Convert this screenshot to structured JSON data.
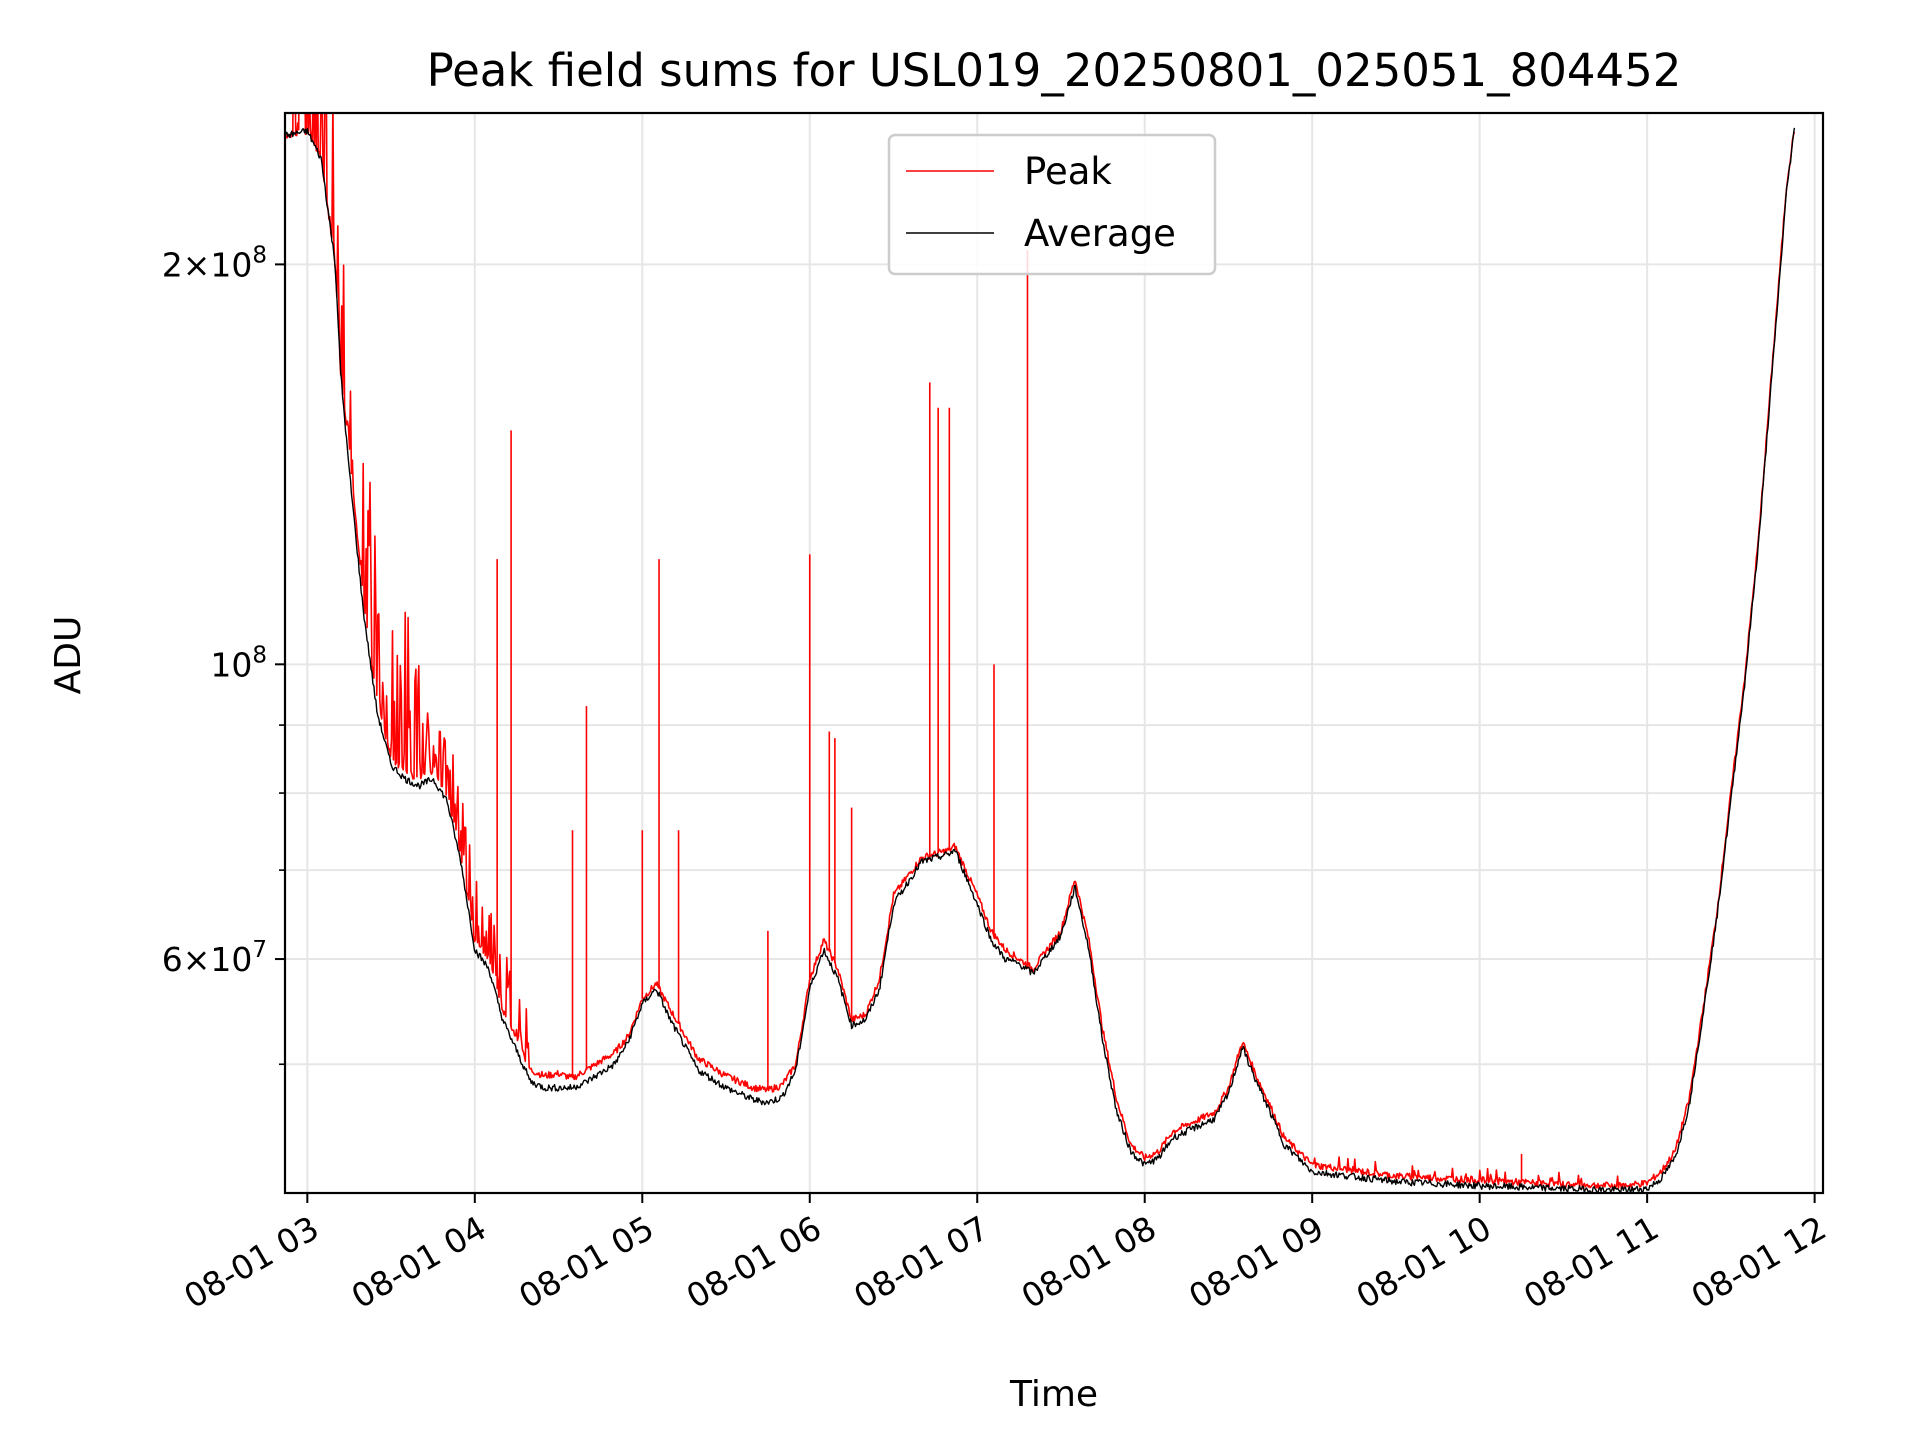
{
  "chart_data": {
    "type": "line",
    "title": "Peak field sums for USL019_20250801_025051_804452",
    "xlabel": "Time",
    "ylabel": "ADU",
    "yscale": "log",
    "ylim": [
      40000000,
      260000000
    ],
    "xlim": [
      "08-01 02:52",
      "08-01 12:03"
    ],
    "grid": true,
    "legend_position": "top-center",
    "x_ticks": [
      "08-01 03",
      "08-01 04",
      "08-01 05",
      "08-01 06",
      "08-01 07",
      "08-01 08",
      "08-01 09",
      "08-01 10",
      "08-01 11",
      "08-01 12"
    ],
    "y_tick_labels": [
      {
        "value": 60000000,
        "mant": "6",
        "exp": "7"
      },
      {
        "value": 100000000,
        "mant": "",
        "exp": "8"
      },
      {
        "value": 200000000,
        "mant": "2",
        "exp": "8"
      }
    ],
    "y_minor_ticks": [
      50000000,
      70000000,
      80000000,
      90000000
    ],
    "series": [
      {
        "name": "Peak",
        "color": "#ff0000",
        "x": [
          "02:52",
          "03:00",
          "03:05",
          "03:10",
          "03:12",
          "03:15",
          "03:20",
          "03:25",
          "03:30",
          "03:35",
          "03:40",
          "03:45",
          "03:50",
          "03:55",
          "04:00",
          "04:05",
          "04:10",
          "04:20",
          "04:25",
          "04:30",
          "04:35",
          "04:40",
          "04:50",
          "04:55",
          "05:00",
          "05:05",
          "05:10",
          "05:20",
          "05:30",
          "05:40",
          "05:45",
          "05:50",
          "05:55",
          "06:00",
          "06:05",
          "06:10",
          "06:15",
          "06:20",
          "06:25",
          "06:30",
          "06:40",
          "06:50",
          "06:52",
          "07:00",
          "07:05",
          "07:10",
          "07:15",
          "07:20",
          "07:25",
          "07:30",
          "07:35",
          "07:40",
          "07:45",
          "07:50",
          "07:55",
          "08:00",
          "08:05",
          "08:10",
          "08:15",
          "08:20",
          "08:25",
          "08:30",
          "08:35",
          "08:40",
          "08:45",
          "08:50",
          "09:00",
          "09:30",
          "10:00",
          "10:30",
          "10:50",
          "11:00",
          "11:05",
          "11:10",
          "11:15",
          "11:20",
          "11:25",
          "11:30",
          "11:35",
          "11:40",
          "11:45",
          "11:50",
          "11:53"
        ],
        "y": [
          250000000,
          252000000,
          240000000,
          200000000,
          165000000,
          145000000,
          112000000,
          94000000,
          85000000,
          83000000,
          82000000,
          83000000,
          80000000,
          72000000,
          62000000,
          60000000,
          55000000,
          49500000,
          49000000,
          49200000,
          48800000,
          49500000,
          51000000,
          52500000,
          56000000,
          57500000,
          55000000,
          50500000,
          49000000,
          48000000,
          47800000,
          48200000,
          50000000,
          58000000,
          62000000,
          59000000,
          54000000,
          54500000,
          58000000,
          67000000,
          71500000,
          72500000,
          73000000,
          67000000,
          63000000,
          61000000,
          60000000,
          59000000,
          61000000,
          63000000,
          69000000,
          62000000,
          53000000,
          47000000,
          43500000,
          42500000,
          43000000,
          44500000,
          45000000,
          45500000,
          46000000,
          48000000,
          52000000,
          49000000,
          46500000,
          44000000,
          42000000,
          41200000,
          40900000,
          40600000,
          40500000,
          40700000,
          41500000,
          43000000,
          47000000,
          55000000,
          65000000,
          80000000,
          98000000,
          125000000,
          170000000,
          230000000,
          255000000
        ]
      },
      {
        "name": "Average",
        "color": "#000000",
        "x": [
          "02:52",
          "03:00",
          "03:05",
          "03:10",
          "03:12",
          "03:15",
          "03:20",
          "03:25",
          "03:30",
          "03:35",
          "03:40",
          "03:45",
          "03:50",
          "03:55",
          "04:00",
          "04:05",
          "04:10",
          "04:20",
          "04:25",
          "04:30",
          "04:35",
          "04:40",
          "04:50",
          "04:55",
          "05:00",
          "05:05",
          "05:10",
          "05:20",
          "05:30",
          "05:40",
          "05:45",
          "05:50",
          "05:55",
          "06:00",
          "06:05",
          "06:10",
          "06:15",
          "06:20",
          "06:25",
          "06:30",
          "06:40",
          "06:50",
          "06:52",
          "07:00",
          "07:05",
          "07:10",
          "07:15",
          "07:20",
          "07:25",
          "07:30",
          "07:35",
          "07:40",
          "07:45",
          "07:50",
          "07:55",
          "08:00",
          "08:05",
          "08:10",
          "08:15",
          "08:20",
          "08:25",
          "08:30",
          "08:35",
          "08:40",
          "08:45",
          "08:50",
          "09:00",
          "09:30",
          "10:00",
          "10:30",
          "10:50",
          "11:00",
          "11:05",
          "11:10",
          "11:15",
          "11:20",
          "11:25",
          "11:30",
          "11:35",
          "11:40",
          "11:45",
          "11:50",
          "11:53"
        ],
        "y": [
          250000000,
          252000000,
          240000000,
          200000000,
          165000000,
          140000000,
          110000000,
          92000000,
          84000000,
          82000000,
          81000000,
          82000000,
          79000000,
          71000000,
          61000000,
          59000000,
          54000000,
          48500000,
          48000000,
          48000000,
          48000000,
          48500000,
          50000000,
          52000000,
          55500000,
          57000000,
          54000000,
          49500000,
          48000000,
          47000000,
          46800000,
          47200000,
          49500000,
          57000000,
          61000000,
          58000000,
          53500000,
          54000000,
          57000000,
          66000000,
          71000000,
          72000000,
          72500000,
          66000000,
          62000000,
          60000000,
          59500000,
          58500000,
          60500000,
          62500000,
          68000000,
          61000000,
          52000000,
          46000000,
          43000000,
          42000000,
          42500000,
          44000000,
          44500000,
          45000000,
          45500000,
          47500000,
          51500000,
          48500000,
          46000000,
          43500000,
          41500000,
          40800000,
          40500000,
          40300000,
          40200000,
          40300000,
          41000000,
          42500000,
          46500000,
          54500000,
          64500000,
          79000000,
          97000000,
          124000000,
          168000000,
          228000000,
          255000000
        ]
      },
      {
        "name": "",
        "color": "#ff0000",
        "spikes": [
          {
            "x": "04:08",
            "y": 120000000
          },
          {
            "x": "04:13",
            "y": 150000000
          },
          {
            "x": "04:35",
            "y": 75000000
          },
          {
            "x": "04:40",
            "y": 93000000
          },
          {
            "x": "05:00",
            "y": 75000000
          },
          {
            "x": "05:06",
            "y": 120000000
          },
          {
            "x": "05:13",
            "y": 75000000
          },
          {
            "x": "05:45",
            "y": 63000000
          },
          {
            "x": "06:00",
            "y": 121000000
          },
          {
            "x": "06:07",
            "y": 89000000
          },
          {
            "x": "06:09",
            "y": 88000000
          },
          {
            "x": "06:15",
            "y": 78000000
          },
          {
            "x": "06:43",
            "y": 163000000
          },
          {
            "x": "06:46",
            "y": 156000000
          },
          {
            "x": "06:50",
            "y": 156000000
          },
          {
            "x": "07:06",
            "y": 100000000
          },
          {
            "x": "07:18",
            "y": 205000000
          },
          {
            "x": "10:15",
            "y": 42800000
          }
        ]
      }
    ]
  }
}
